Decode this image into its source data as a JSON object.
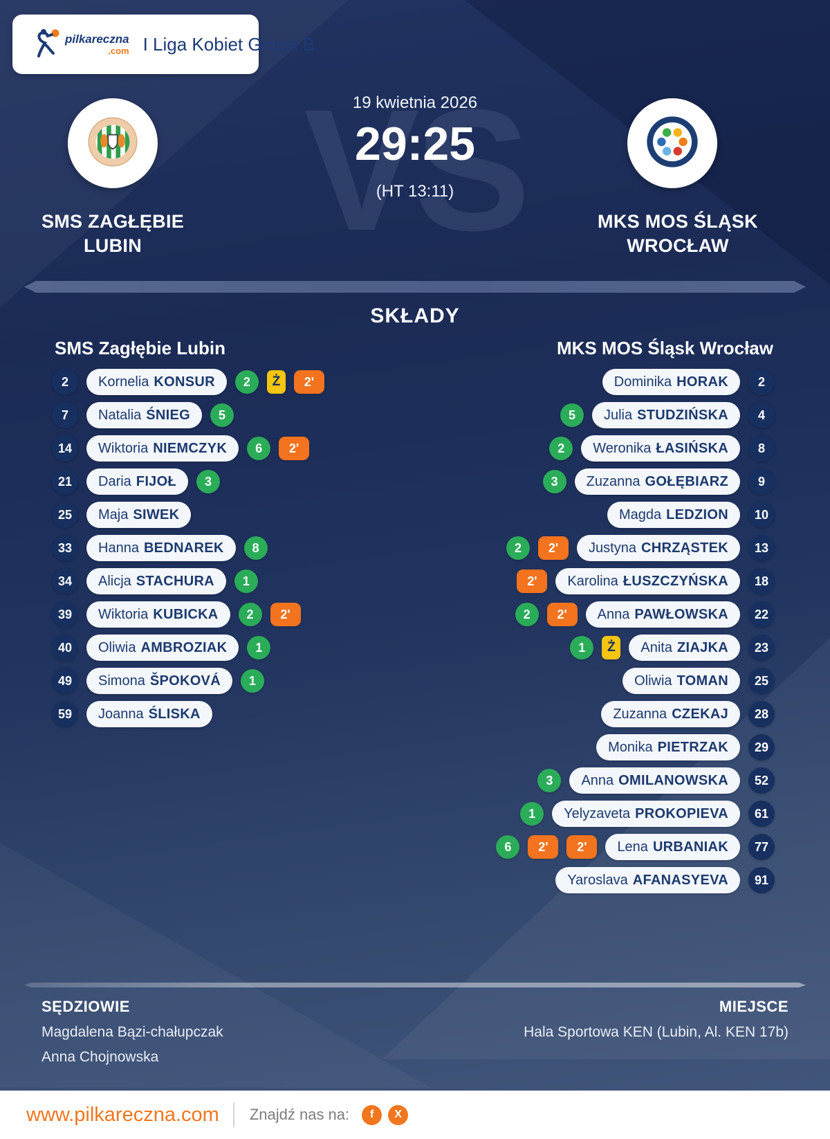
{
  "header": {
    "league": "I Liga Kobiet Grupa B",
    "logo_word": "pilkareczna",
    "logo_tld": ".com"
  },
  "match": {
    "date": "19 kwietnia 2026",
    "score": "29:25",
    "halftime": "(HT 13:11)",
    "vs_watermark": "VS",
    "home_name": "SMS ZAGŁĘBIE LUBIN",
    "away_name": "MKS MOS ŚLĄSK WROCŁAW"
  },
  "lineups": {
    "title": "SKŁADY",
    "badges": {
      "yellow_label": "Ż",
      "susp_label": "2'"
    },
    "home": {
      "team": "SMS Zagłębie Lubin",
      "players": [
        {
          "number": "2",
          "first": "Kornelia",
          "last": "KONSUR",
          "goals": "2",
          "yellow": true,
          "susp": 1
        },
        {
          "number": "7",
          "first": "Natalia",
          "last": "ŚNIEG",
          "goals": "5",
          "yellow": false,
          "susp": 0
        },
        {
          "number": "14",
          "first": "Wiktoria",
          "last": "NIEMCZYK",
          "goals": "6",
          "yellow": false,
          "susp": 1
        },
        {
          "number": "21",
          "first": "Daria",
          "last": "FIJOŁ",
          "goals": "3",
          "yellow": false,
          "susp": 0
        },
        {
          "number": "25",
          "first": "Maja",
          "last": "SIWEK",
          "goals": null,
          "yellow": false,
          "susp": 0
        },
        {
          "number": "33",
          "first": "Hanna",
          "last": "BEDNAREK",
          "goals": "8",
          "yellow": false,
          "susp": 0
        },
        {
          "number": "34",
          "first": "Alicja",
          "last": "STACHURA",
          "goals": "1",
          "yellow": false,
          "susp": 0
        },
        {
          "number": "39",
          "first": "Wiktoria",
          "last": "KUBICKA",
          "goals": "2",
          "yellow": false,
          "susp": 1
        },
        {
          "number": "40",
          "first": "Oliwia",
          "last": "AMBROZIAK",
          "goals": "1",
          "yellow": false,
          "susp": 0
        },
        {
          "number": "49",
          "first": "Simona",
          "last": "ŠPOKOVÁ",
          "goals": "1",
          "yellow": false,
          "susp": 0
        },
        {
          "number": "59",
          "first": "Joanna",
          "last": "ŚLISKA",
          "goals": null,
          "yellow": false,
          "susp": 0
        }
      ]
    },
    "away": {
      "team": "MKS MOS Śląsk Wrocław",
      "players": [
        {
          "number": "2",
          "first": "Dominika",
          "last": "HORAK",
          "goals": null,
          "yellow": false,
          "susp": 0
        },
        {
          "number": "4",
          "first": "Julia",
          "last": "STUDZIŃSKA",
          "goals": "5",
          "yellow": false,
          "susp": 0
        },
        {
          "number": "8",
          "first": "Weronika",
          "last": "ŁASIŃSKA",
          "goals": "2",
          "yellow": false,
          "susp": 0
        },
        {
          "number": "9",
          "first": "Zuzanna",
          "last": "GOŁĘBIARZ",
          "goals": "3",
          "yellow": false,
          "susp": 0
        },
        {
          "number": "10",
          "first": "Magda",
          "last": "LEDZION",
          "goals": null,
          "yellow": false,
          "susp": 0
        },
        {
          "number": "13",
          "first": "Justyna",
          "last": "CHRZĄSTEK",
          "goals": "2",
          "yellow": false,
          "susp": 1
        },
        {
          "number": "18",
          "first": "Karolina",
          "last": "ŁUSZCZYŃSKA",
          "goals": null,
          "yellow": false,
          "susp": 1
        },
        {
          "number": "22",
          "first": "Anna",
          "last": "PAWŁOWSKA",
          "goals": "2",
          "yellow": false,
          "susp": 1
        },
        {
          "number": "23",
          "first": "Anita",
          "last": "ZIAJKA",
          "goals": "1",
          "yellow": true,
          "susp": 0
        },
        {
          "number": "25",
          "first": "Oliwia",
          "last": "TOMAN",
          "goals": null,
          "yellow": false,
          "susp": 0
        },
        {
          "number": "28",
          "first": "Zuzanna",
          "last": "CZEKAJ",
          "goals": null,
          "yellow": false,
          "susp": 0
        },
        {
          "number": "29",
          "first": "Monika",
          "last": "PIETRZAK",
          "goals": null,
          "yellow": false,
          "susp": 0
        },
        {
          "number": "52",
          "first": "Anna",
          "last": "OMILANOWSKA",
          "goals": "3",
          "yellow": false,
          "susp": 0
        },
        {
          "number": "61",
          "first": "Yelyzaveta",
          "last": "PROKOPIEVA",
          "goals": "1",
          "yellow": false,
          "susp": 0
        },
        {
          "number": "77",
          "first": "Lena",
          "last": "URBANIAK",
          "goals": "6",
          "yellow": false,
          "susp": 2
        },
        {
          "number": "91",
          "first": "Yaroslava",
          "last": "AFANASYEVA",
          "goals": null,
          "yellow": false,
          "susp": 0
        }
      ]
    }
  },
  "officials": {
    "referees_label": "SĘDZIOWIE",
    "referees": [
      "Magdalena Bązi-chałupczak",
      "Anna Chojnowska"
    ],
    "venue_label": "MIEJSCE",
    "venue": "Hala Sportowa KEN (Lubin, Al. KEN 17b)"
  },
  "footer": {
    "website": "www.pilkareczna.com",
    "find_us": "Znajdź nas na:",
    "social": [
      {
        "name": "facebook",
        "glyph": "f"
      },
      {
        "name": "x",
        "glyph": "X"
      }
    ]
  },
  "colors": {
    "accent_orange": "#f3731f",
    "goal_green": "#2bac59",
    "card_yellow": "#f4c511",
    "navy": "#16305f",
    "pill_bg": "#f3f6fb"
  }
}
